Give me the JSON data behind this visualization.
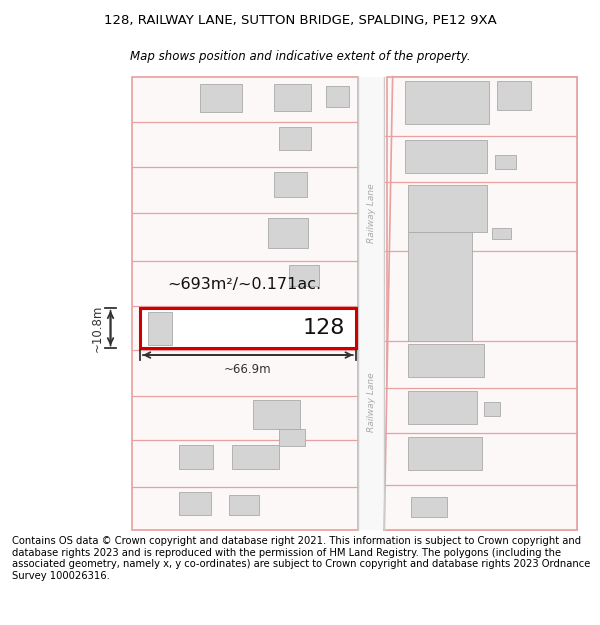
{
  "title": "128, RAILWAY LANE, SUTTON BRIDGE, SPALDING, PE12 9XA",
  "subtitle": "Map shows position and indicative extent of the property.",
  "footer": "Contains OS data © Crown copyright and database right 2021. This information is subject to Crown copyright and database rights 2023 and is reproduced with the permission of HM Land Registry. The polygons (including the associated geometry, namely x, y co-ordinates) are subject to Crown copyright and database rights 2023 Ordnance Survey 100026316.",
  "background_color": "#ffffff",
  "parcel_line_color": "#e8a0a0",
  "building_fill": "#d4d4d4",
  "building_line": "#aaaaaa",
  "highlight_fill": "#ffffff",
  "highlight_line": "#cc0000",
  "road_label_color": "#aaaaaa",
  "dim_color": "#333333",
  "label_128_color": "#111111",
  "area_label_color": "#111111",
  "title_fontsize": 9.5,
  "subtitle_fontsize": 8.5,
  "footer_fontsize": 7.2,
  "lane_fill": "#f9f9f9",
  "left_fill": "#fdf8f8",
  "right_fill": "#fdf8f8"
}
